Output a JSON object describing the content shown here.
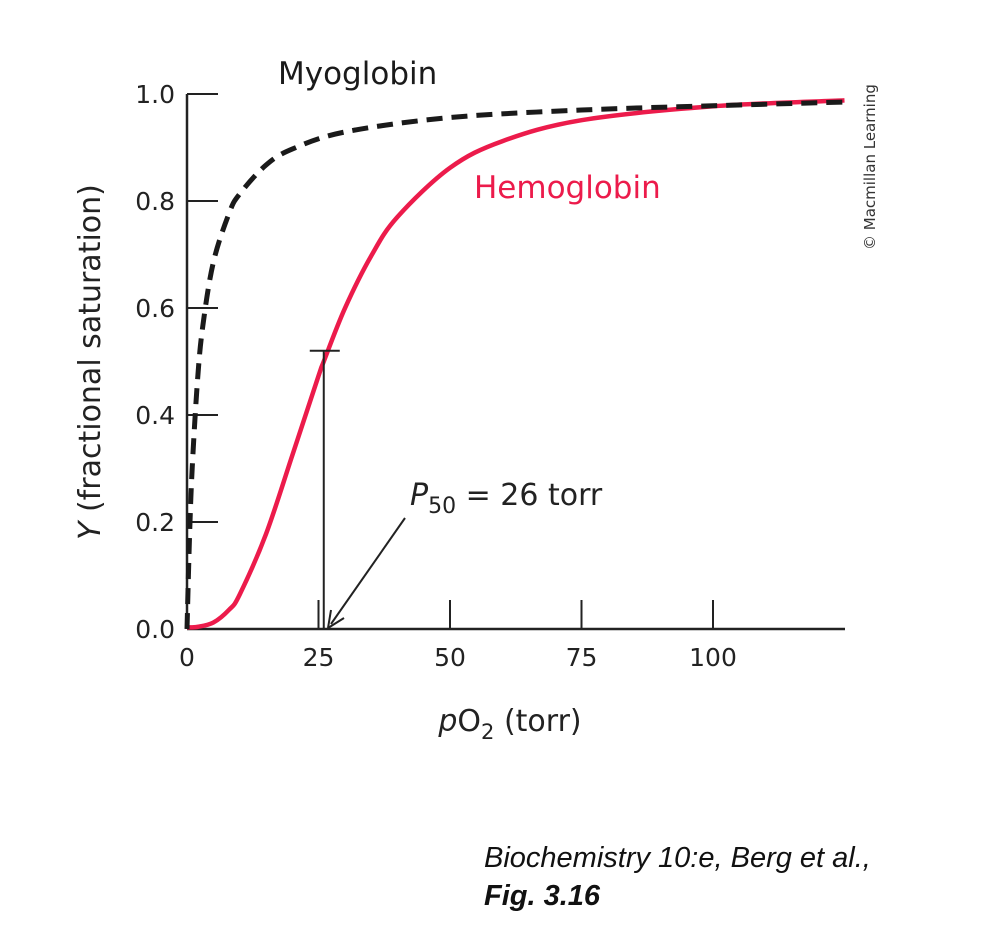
{
  "chart_data": {
    "type": "line",
    "xlabel": {
      "italic": "p",
      "main": "O",
      "sub": "2",
      "rest": " (torr)"
    },
    "ylabel": {
      "italic": "Y",
      "rest": " (fractional saturation)"
    },
    "xlim": [
      0,
      125
    ],
    "ylim": [
      0,
      1.0
    ],
    "grid": false,
    "x_ticks": [
      0,
      25,
      50,
      75,
      100
    ],
    "x_tick_labels": [
      "0",
      "25",
      "50",
      "75",
      "100"
    ],
    "y_ticks": [
      0,
      0.2,
      0.4,
      0.6,
      0.8,
      1.0
    ],
    "y_tick_labels": [
      "0.0",
      "0.2",
      "0.4",
      "0.6",
      "0.8",
      "1.0"
    ],
    "series": [
      {
        "name": "Myoglobin",
        "color": "#1a1a1a",
        "style": "dashed",
        "x": [
          0,
          0.5,
          1,
          2,
          3,
          5,
          8,
          10,
          15,
          20,
          30,
          50,
          75,
          100,
          125
        ],
        "y": [
          0,
          0.179,
          0.303,
          0.465,
          0.566,
          0.685,
          0.777,
          0.813,
          0.867,
          0.897,
          0.929,
          0.956,
          0.97,
          0.978,
          0.985
        ]
      },
      {
        "name": "Hemoglobin",
        "color": "#ec1b4b",
        "style": "solid",
        "x": [
          0,
          2,
          5,
          8,
          10,
          15,
          20,
          25,
          26,
          30,
          35,
          40,
          50,
          60,
          75,
          100,
          125
        ],
        "y": [
          0.003,
          0.004,
          0.012,
          0.036,
          0.064,
          0.177,
          0.324,
          0.473,
          0.5,
          0.599,
          0.697,
          0.77,
          0.862,
          0.912,
          0.951,
          0.977,
          0.988
        ]
      }
    ],
    "annotation": {
      "p50_x": 26,
      "p50_y": 0.52,
      "label_italic": "P",
      "label_sub": "50",
      "label_rest": " = 26 torr"
    },
    "copyright": "© Macmillan Learning"
  },
  "caption": {
    "line1": "Biochemistry 10:e, Berg et al.,",
    "line2": "Fig. 3.16"
  }
}
